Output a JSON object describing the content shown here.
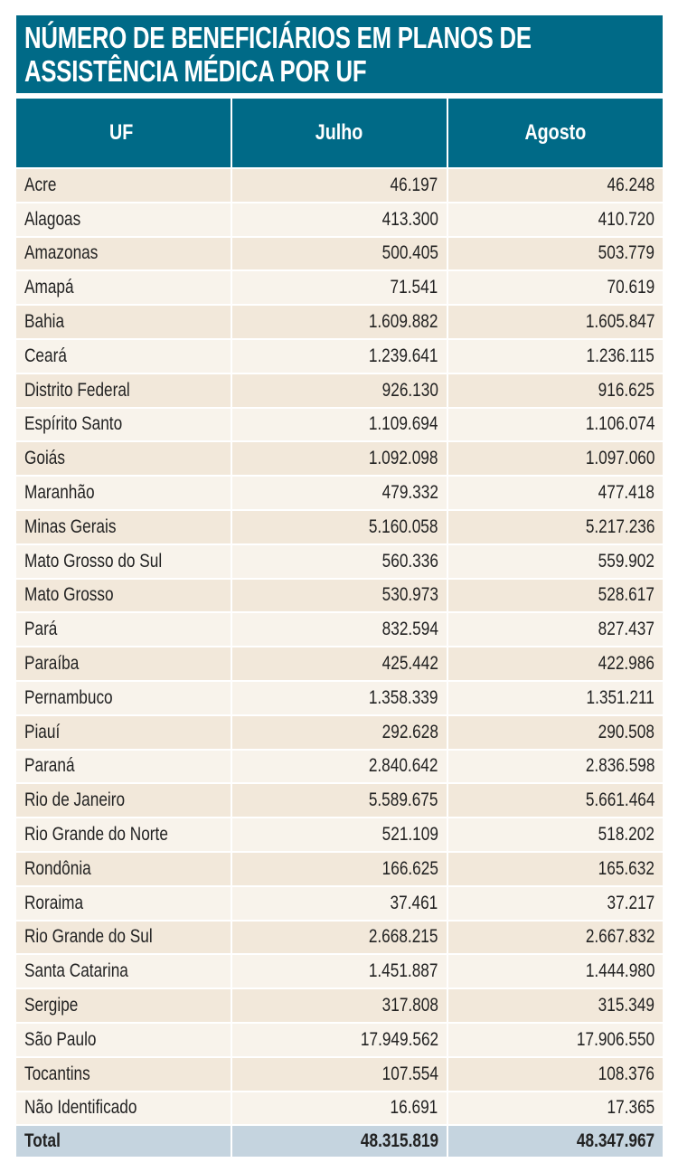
{
  "title": {
    "line1": "NÚMERO DE BENEFICIÁRIOS EM PLANOS DE",
    "line2": "ASSISTÊNCIA MÉDICA POR UF"
  },
  "colors": {
    "header_bg": "#006a87",
    "row_odd": "#f2e8da",
    "row_even": "#f8f3eb",
    "total_bg": "#c5d4df"
  },
  "columns": [
    "UF",
    "Julho",
    "Agosto"
  ],
  "rows": [
    {
      "uf": "Acre",
      "julho": "46.197",
      "agosto": "46.248"
    },
    {
      "uf": "Alagoas",
      "julho": "413.300",
      "agosto": "410.720"
    },
    {
      "uf": "Amazonas",
      "julho": "500.405",
      "agosto": "503.779"
    },
    {
      "uf": "Amapá",
      "julho": "71.541",
      "agosto": "70.619"
    },
    {
      "uf": "Bahia",
      "julho": "1.609.882",
      "agosto": "1.605.847"
    },
    {
      "uf": "Ceará",
      "julho": "1.239.641",
      "agosto": "1.236.115"
    },
    {
      "uf": "Distrito Federal",
      "julho": "926.130",
      "agosto": "916.625"
    },
    {
      "uf": "Espírito Santo",
      "julho": "1.109.694",
      "agosto": "1.106.074"
    },
    {
      "uf": "Goiás",
      "julho": "1.092.098",
      "agosto": "1.097.060"
    },
    {
      "uf": "Maranhão",
      "julho": "479.332",
      "agosto": "477.418"
    },
    {
      "uf": "Minas Gerais",
      "julho": "5.160.058",
      "agosto": "5.217.236"
    },
    {
      "uf": "Mato Grosso do Sul",
      "julho": "560.336",
      "agosto": "559.902"
    },
    {
      "uf": "Mato Grosso",
      "julho": "530.973",
      "agosto": "528.617"
    },
    {
      "uf": "Pará",
      "julho": "832.594",
      "agosto": "827.437"
    },
    {
      "uf": "Paraíba",
      "julho": "425.442",
      "agosto": "422.986"
    },
    {
      "uf": "Pernambuco",
      "julho": "1.358.339",
      "agosto": "1.351.211"
    },
    {
      "uf": "Piauí",
      "julho": "292.628",
      "agosto": "290.508"
    },
    {
      "uf": "Paraná",
      "julho": "2.840.642",
      "agosto": "2.836.598"
    },
    {
      "uf": "Rio de Janeiro",
      "julho": "5.589.675",
      "agosto": "5.661.464"
    },
    {
      "uf": "Rio Grande do Norte",
      "julho": "521.109",
      "agosto": "518.202"
    },
    {
      "uf": "Rondônia",
      "julho": "166.625",
      "agosto": "165.632"
    },
    {
      "uf": "Roraima",
      "julho": "37.461",
      "agosto": "37.217"
    },
    {
      "uf": "Rio Grande do Sul",
      "julho": "2.668.215",
      "agosto": "2.667.832"
    },
    {
      "uf": "Santa Catarina",
      "julho": "1.451.887",
      "agosto": "1.444.980"
    },
    {
      "uf": "Sergipe",
      "julho": "317.808",
      "agosto": "315.349"
    },
    {
      "uf": "São Paulo",
      "julho": "17.949.562",
      "agosto": "17.906.550"
    },
    {
      "uf": "Tocantins",
      "julho": "107.554",
      "agosto": "108.376"
    },
    {
      "uf": "Não Identificado",
      "julho": "16.691",
      "agosto": "17.365"
    }
  ],
  "total": {
    "label": "Total",
    "julho": "48.315.819",
    "agosto": "48.347.967"
  }
}
